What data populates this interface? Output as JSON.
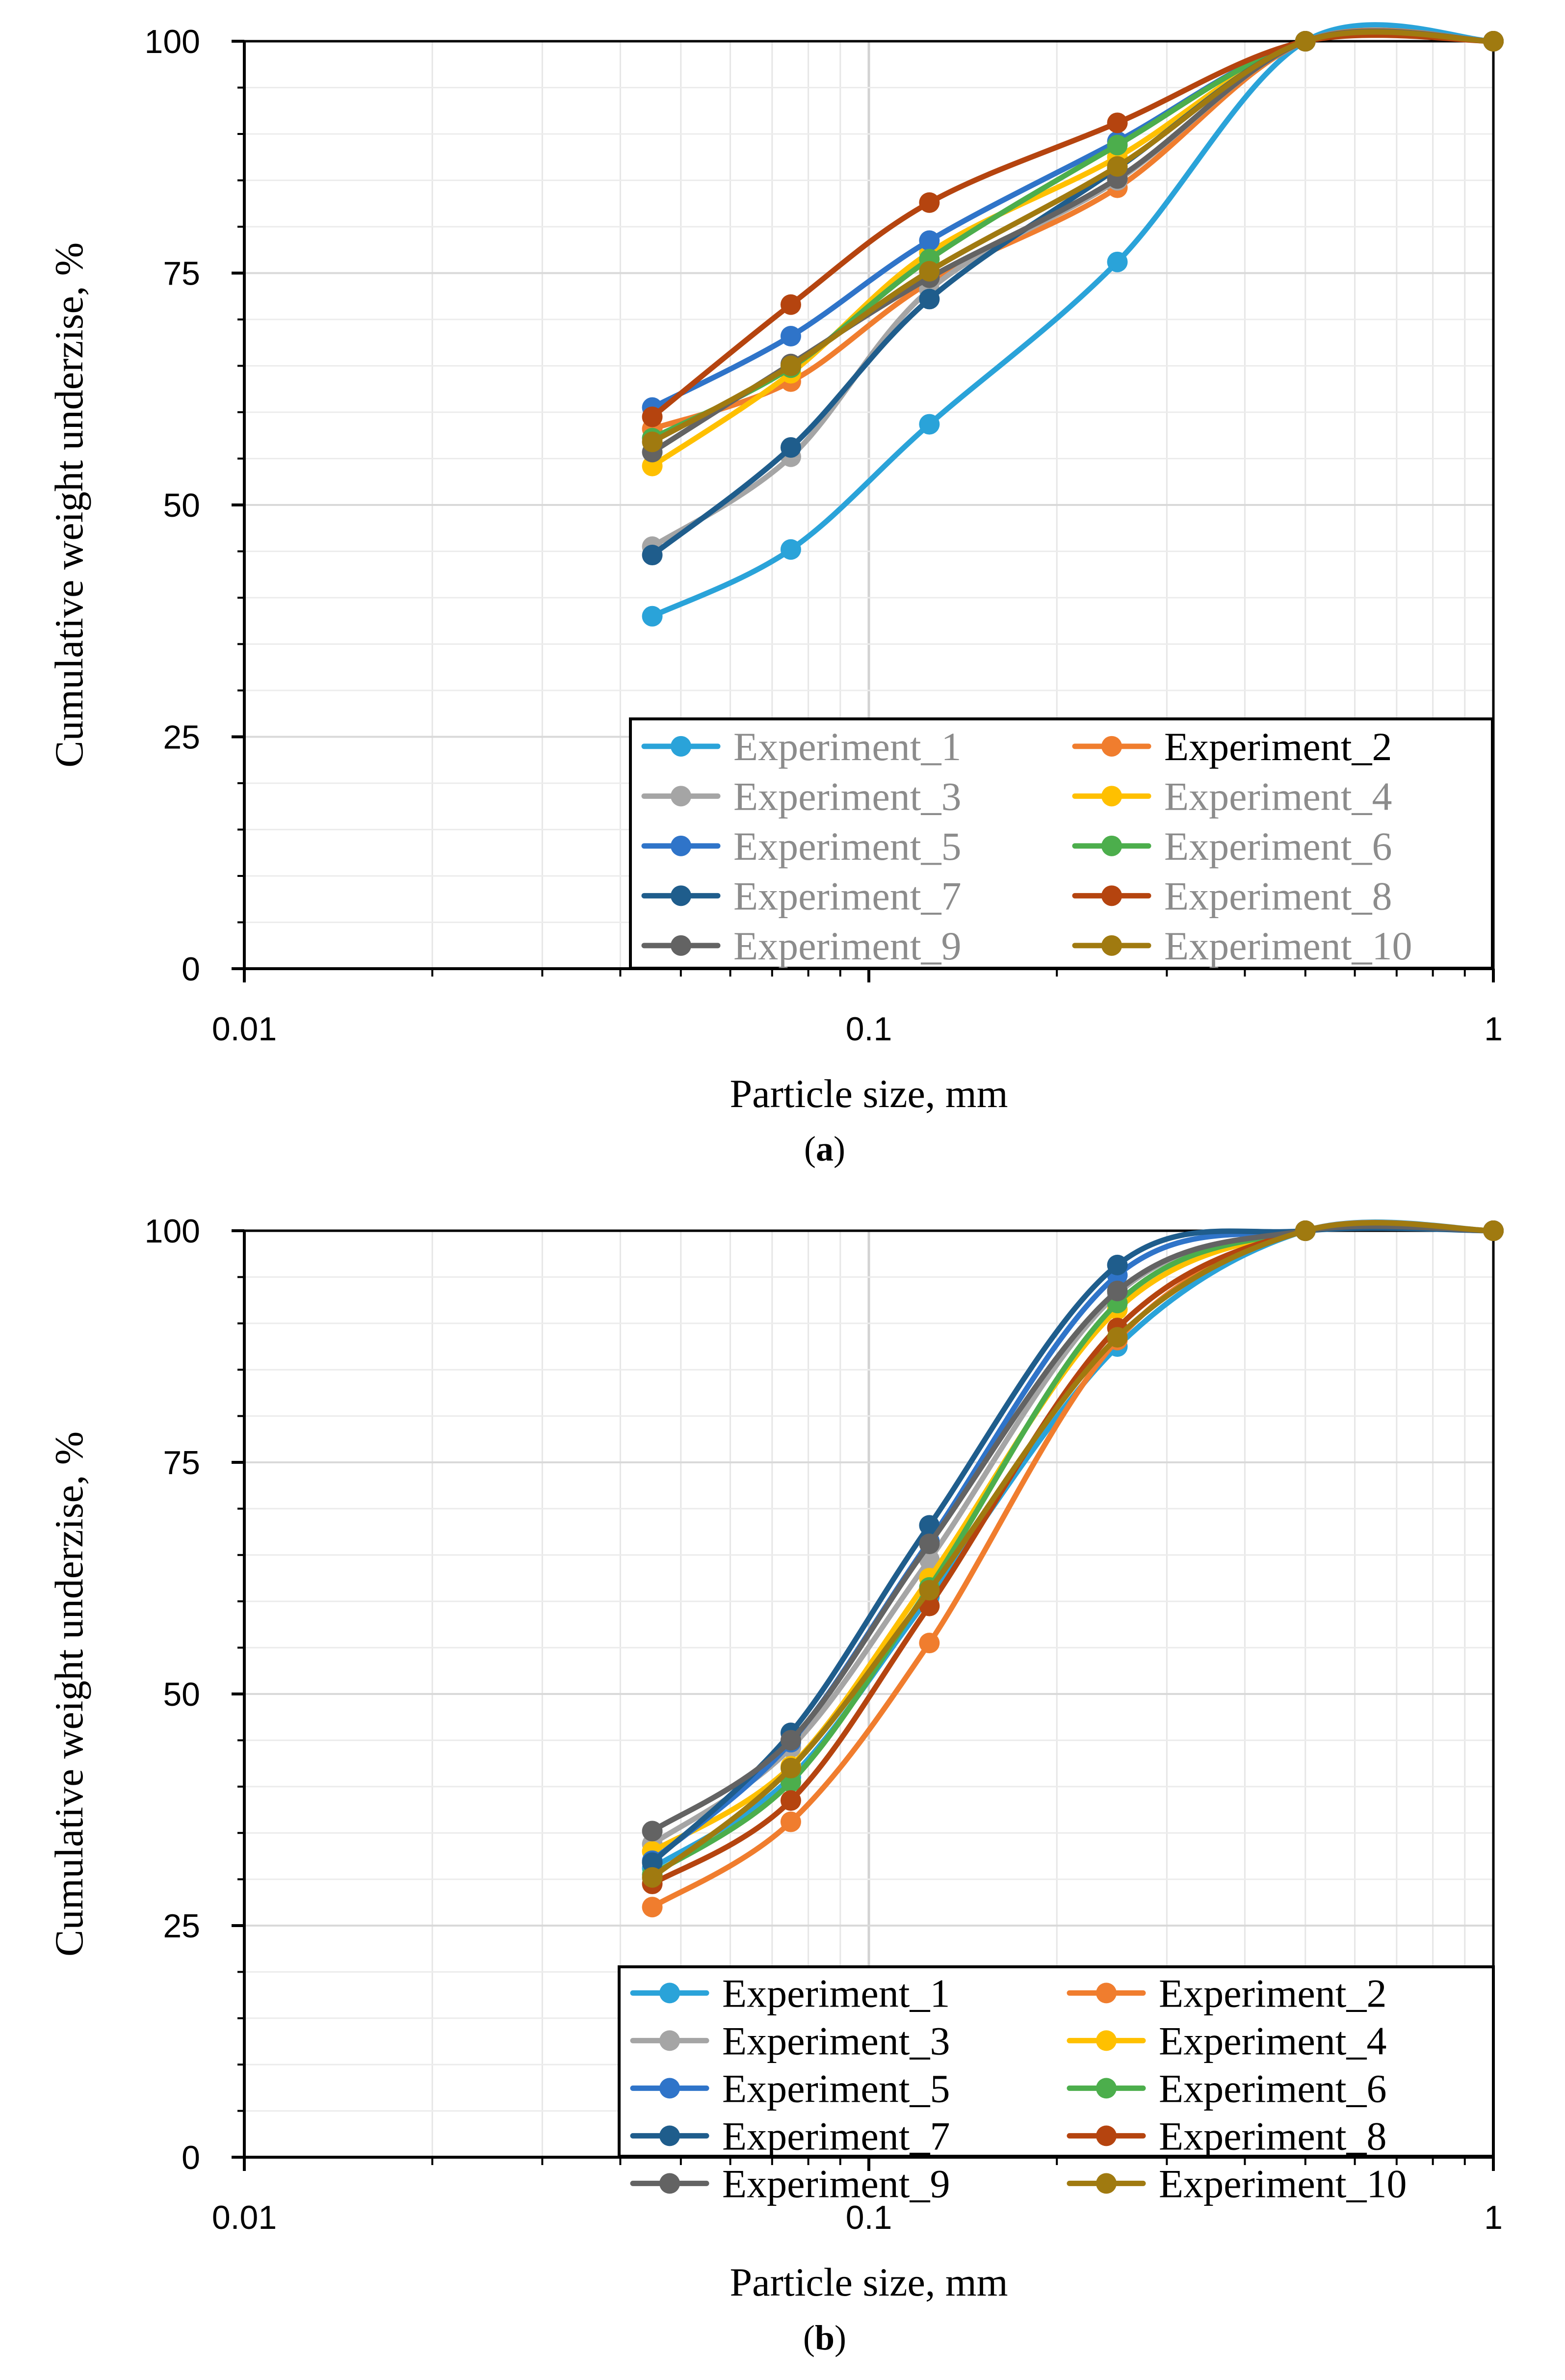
{
  "figure": {
    "panels": [
      {
        "caption_letter": "a",
        "chart_data": {
          "type": "line",
          "title": "",
          "xlabel": "Particle size, mm",
          "ylabel": "Cumulative weight underzise, %",
          "xscale": "log",
          "xlim": [
            0.01,
            1
          ],
          "ylim": [
            0,
            100
          ],
          "x_ticks": [
            "0.01",
            "0.1",
            "1"
          ],
          "y_ticks": [
            "0",
            "25",
            "50",
            "75",
            "100"
          ],
          "grid": true,
          "legend_position": "bottom-right",
          "x": [
            0.045,
            0.075,
            0.125,
            0.25,
            0.5,
            1
          ],
          "series": [
            {
              "name": "Experiment_1",
              "color": "#2aa3d9",
              "values": [
                38,
                45.2,
                58.7,
                76.2,
                100,
                100
              ]
            },
            {
              "name": "Experiment_2",
              "color": "#f07d2e",
              "values": [
                58.2,
                63.3,
                74,
                84.2,
                100,
                100
              ]
            },
            {
              "name": "Experiment_3",
              "color": "#a5a5a5",
              "values": [
                45.5,
                55.2,
                73.2,
                85,
                100,
                100
              ]
            },
            {
              "name": "Experiment_4",
              "color": "#ffc000",
              "values": [
                54.2,
                64.2,
                77.2,
                87.5,
                100,
                100
              ]
            },
            {
              "name": "Experiment_5",
              "color": "#2f74c9",
              "values": [
                60.5,
                68.2,
                78.5,
                89.2,
                100,
                100
              ]
            },
            {
              "name": "Experiment_6",
              "color": "#4cae4c",
              "values": [
                57.2,
                64.8,
                76.5,
                88.8,
                100,
                100
              ]
            },
            {
              "name": "Experiment_7",
              "color": "#1f5d8c",
              "values": [
                44.6,
                56.2,
                72.2,
                86.3,
                100,
                100
              ]
            },
            {
              "name": "Experiment_8",
              "color": "#b5440f",
              "values": [
                59.5,
                71.6,
                82.6,
                91.2,
                100,
                100
              ]
            },
            {
              "name": "Experiment_9",
              "color": "#636363",
              "values": [
                55.7,
                65.2,
                74.5,
                85.2,
                100,
                100
              ]
            },
            {
              "name": "Experiment_10",
              "color": "#a07a10",
              "values": [
                56.8,
                65,
                75.2,
                86.5,
                100,
                100
              ]
            }
          ],
          "legend_dark_entries": [
            "Experiment_2"
          ]
        }
      },
      {
        "caption_letter": "b",
        "chart_data": {
          "type": "line",
          "title": "",
          "xlabel": "Particle size, mm",
          "ylabel": "Cumulative weight underzise, %",
          "xscale": "log",
          "xlim": [
            0.01,
            1
          ],
          "ylim": [
            0,
            100
          ],
          "x_ticks": [
            "0.01",
            "0.1",
            "1"
          ],
          "y_ticks": [
            "0",
            "25",
            "50",
            "75",
            "100"
          ],
          "grid": true,
          "legend_position": "bottom-right",
          "x": [
            0.045,
            0.075,
            0.125,
            0.25,
            0.5,
            1
          ],
          "series": [
            {
              "name": "Experiment_1",
              "color": "#2aa3d9",
              "values": [
                31.2,
                41,
                60.5,
                87.5,
                100,
                100
              ]
            },
            {
              "name": "Experiment_2",
              "color": "#f07d2e",
              "values": [
                27,
                36.2,
                55.5,
                88.2,
                100,
                100
              ]
            },
            {
              "name": "Experiment_3",
              "color": "#a5a5a5",
              "values": [
                33.8,
                44.2,
                64.5,
                93.2,
                100,
                100
              ]
            },
            {
              "name": "Experiment_4",
              "color": "#ffc000",
              "values": [
                33,
                42.2,
                62.5,
                91.5,
                100,
                100
              ]
            },
            {
              "name": "Experiment_5",
              "color": "#2f74c9",
              "values": [
                32,
                44.8,
                66.5,
                95.2,
                100,
                100
              ]
            },
            {
              "name": "Experiment_6",
              "color": "#4cae4c",
              "values": [
                30.5,
                40.5,
                61.5,
                92.2,
                100,
                100
              ]
            },
            {
              "name": "Experiment_7",
              "color": "#1f5d8c",
              "values": [
                31.8,
                45.8,
                68.2,
                96.3,
                100,
                100
              ]
            },
            {
              "name": "Experiment_8",
              "color": "#b5440f",
              "values": [
                29.5,
                38.5,
                59.5,
                89.5,
                100,
                100
              ]
            },
            {
              "name": "Experiment_9",
              "color": "#636363",
              "values": [
                35.2,
                45,
                66.2,
                93.5,
                100,
                100
              ]
            },
            {
              "name": "Experiment_10",
              "color": "#a07a10",
              "values": [
                30.2,
                42,
                61.2,
                88.5,
                100,
                100
              ]
            }
          ],
          "legend_dark_entries": []
        }
      }
    ]
  }
}
